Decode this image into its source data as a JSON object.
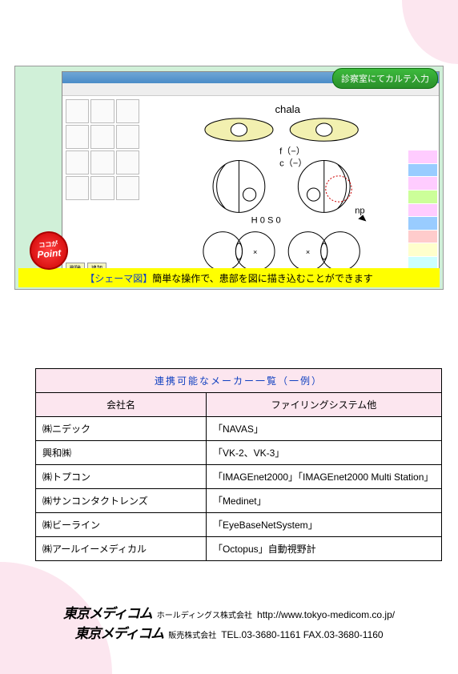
{
  "palette": {
    "pink": "#fce6ef",
    "yellow": "#ffff00",
    "blue_text": "#1040c0",
    "green_badge_top": "#3dbb3d",
    "green_badge_bottom": "#2a8f2a",
    "red_badge": "#cc0000"
  },
  "screenshot": {
    "green_badge": "診察室にてカルテ入力",
    "point_small": "ココが",
    "point_big": "Point",
    "caption_blue": "【シェーマ図】",
    "caption_black": "簡単な操作で、患部を図に描き込むことができます",
    "diagram": {
      "title": "chala",
      "labels": {
        "f": "f（−）",
        "c": "c（−）",
        "hs": "H 0  S 0",
        "np": "np"
      },
      "eye_fill": "#f2f0b0",
      "circle_stroke": "#000000",
      "dotted_stroke": "#cc0000"
    },
    "side_colors": [
      "#ffffff",
      "#ffffff",
      "#ffffff",
      "#ffffff",
      "#ffccff",
      "#99ccff",
      "#ffccff",
      "#ccff99",
      "#ffccff",
      "#99ccff",
      "#ffcccc",
      "#ffffcc",
      "#ccffff",
      "#ffccee"
    ],
    "bottom_buttons": [
      "削除",
      "追加"
    ]
  },
  "table": {
    "title": "連携可能なメーカー一覧（一例）",
    "columns": [
      "会社名",
      "ファイリングシステム他"
    ],
    "rows": [
      {
        "c": "㈱ニデック",
        "f": "「NAVAS」"
      },
      {
        "c": "興和㈱",
        "f": "「VK-2、VK-3」"
      },
      {
        "c": "㈱トプコン",
        "f": "「IMAGEnet2000」「IMAGEnet2000 Multi Station」"
      },
      {
        "c": "㈱サンコンタクトレンズ",
        "f": "「Medinet」"
      },
      {
        "c": "㈱ビーライン",
        "f": "「EyeBaseNetSystem」"
      },
      {
        "c": "㈱アールイーメディカル",
        "f": "「Octopus」自動視野計"
      }
    ]
  },
  "footer": {
    "logo1": "東京メディコム",
    "suffix1": "ホールディングス株式会社",
    "url": "http://www.tokyo-medicom.co.jp/",
    "logo2": "東京メディコム",
    "suffix2": "販売株式会社",
    "contact": "TEL.03-3680-1161 FAX.03-3680-1160"
  }
}
